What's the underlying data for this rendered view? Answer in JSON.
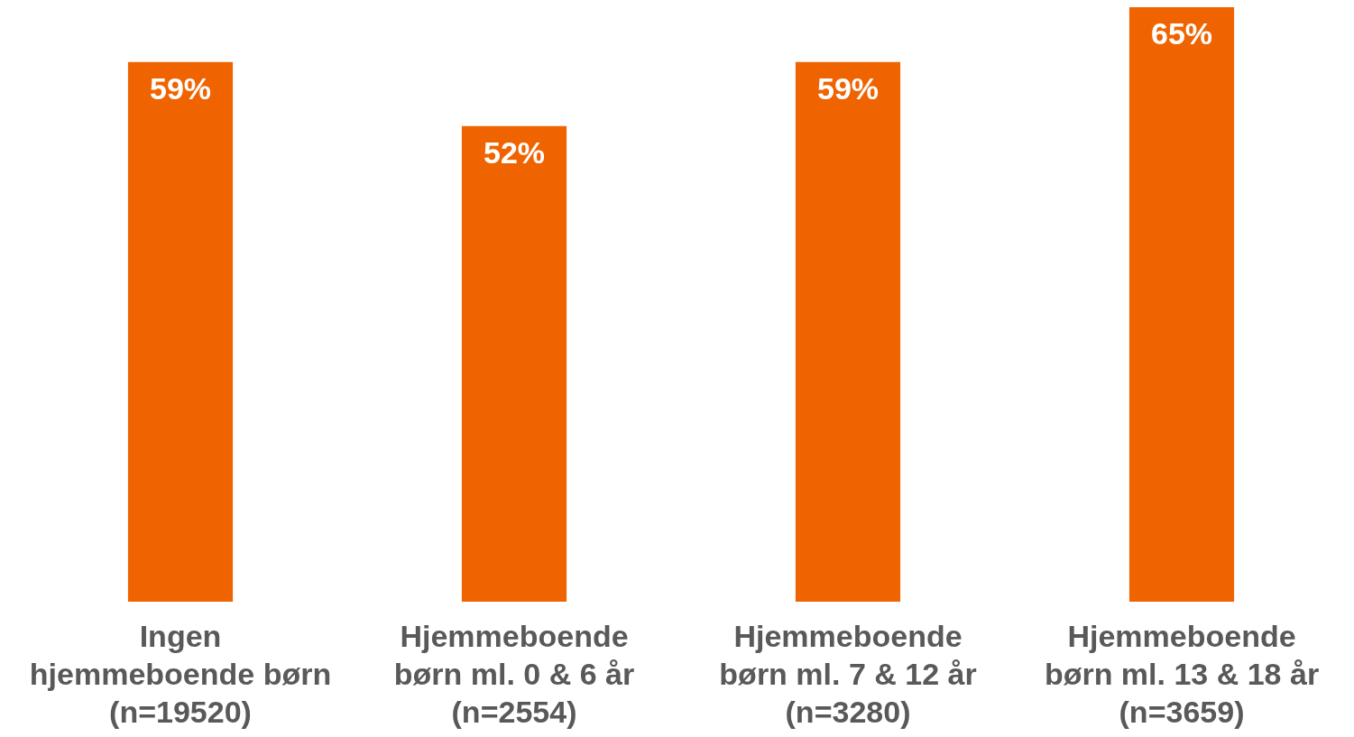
{
  "chart_data": {
    "type": "bar",
    "relative": false,
    "categories": [
      "Ingen\nhjemmeboende børn\n(n=19520)",
      "Hjemmeboende\nbørn ml. 0 & 6 år\n(n=2554)",
      "Hjemmeboende\nbørn ml. 7 & 12 år\n(n=3280)",
      "Hjemmeboende\nbørn ml. 13 & 18 år\n(n=3659)"
    ],
    "values": [
      59,
      52,
      59,
      65
    ],
    "value_labels": [
      "59%",
      "52%",
      "59%",
      "65%"
    ],
    "color": "#ef6400"
  }
}
